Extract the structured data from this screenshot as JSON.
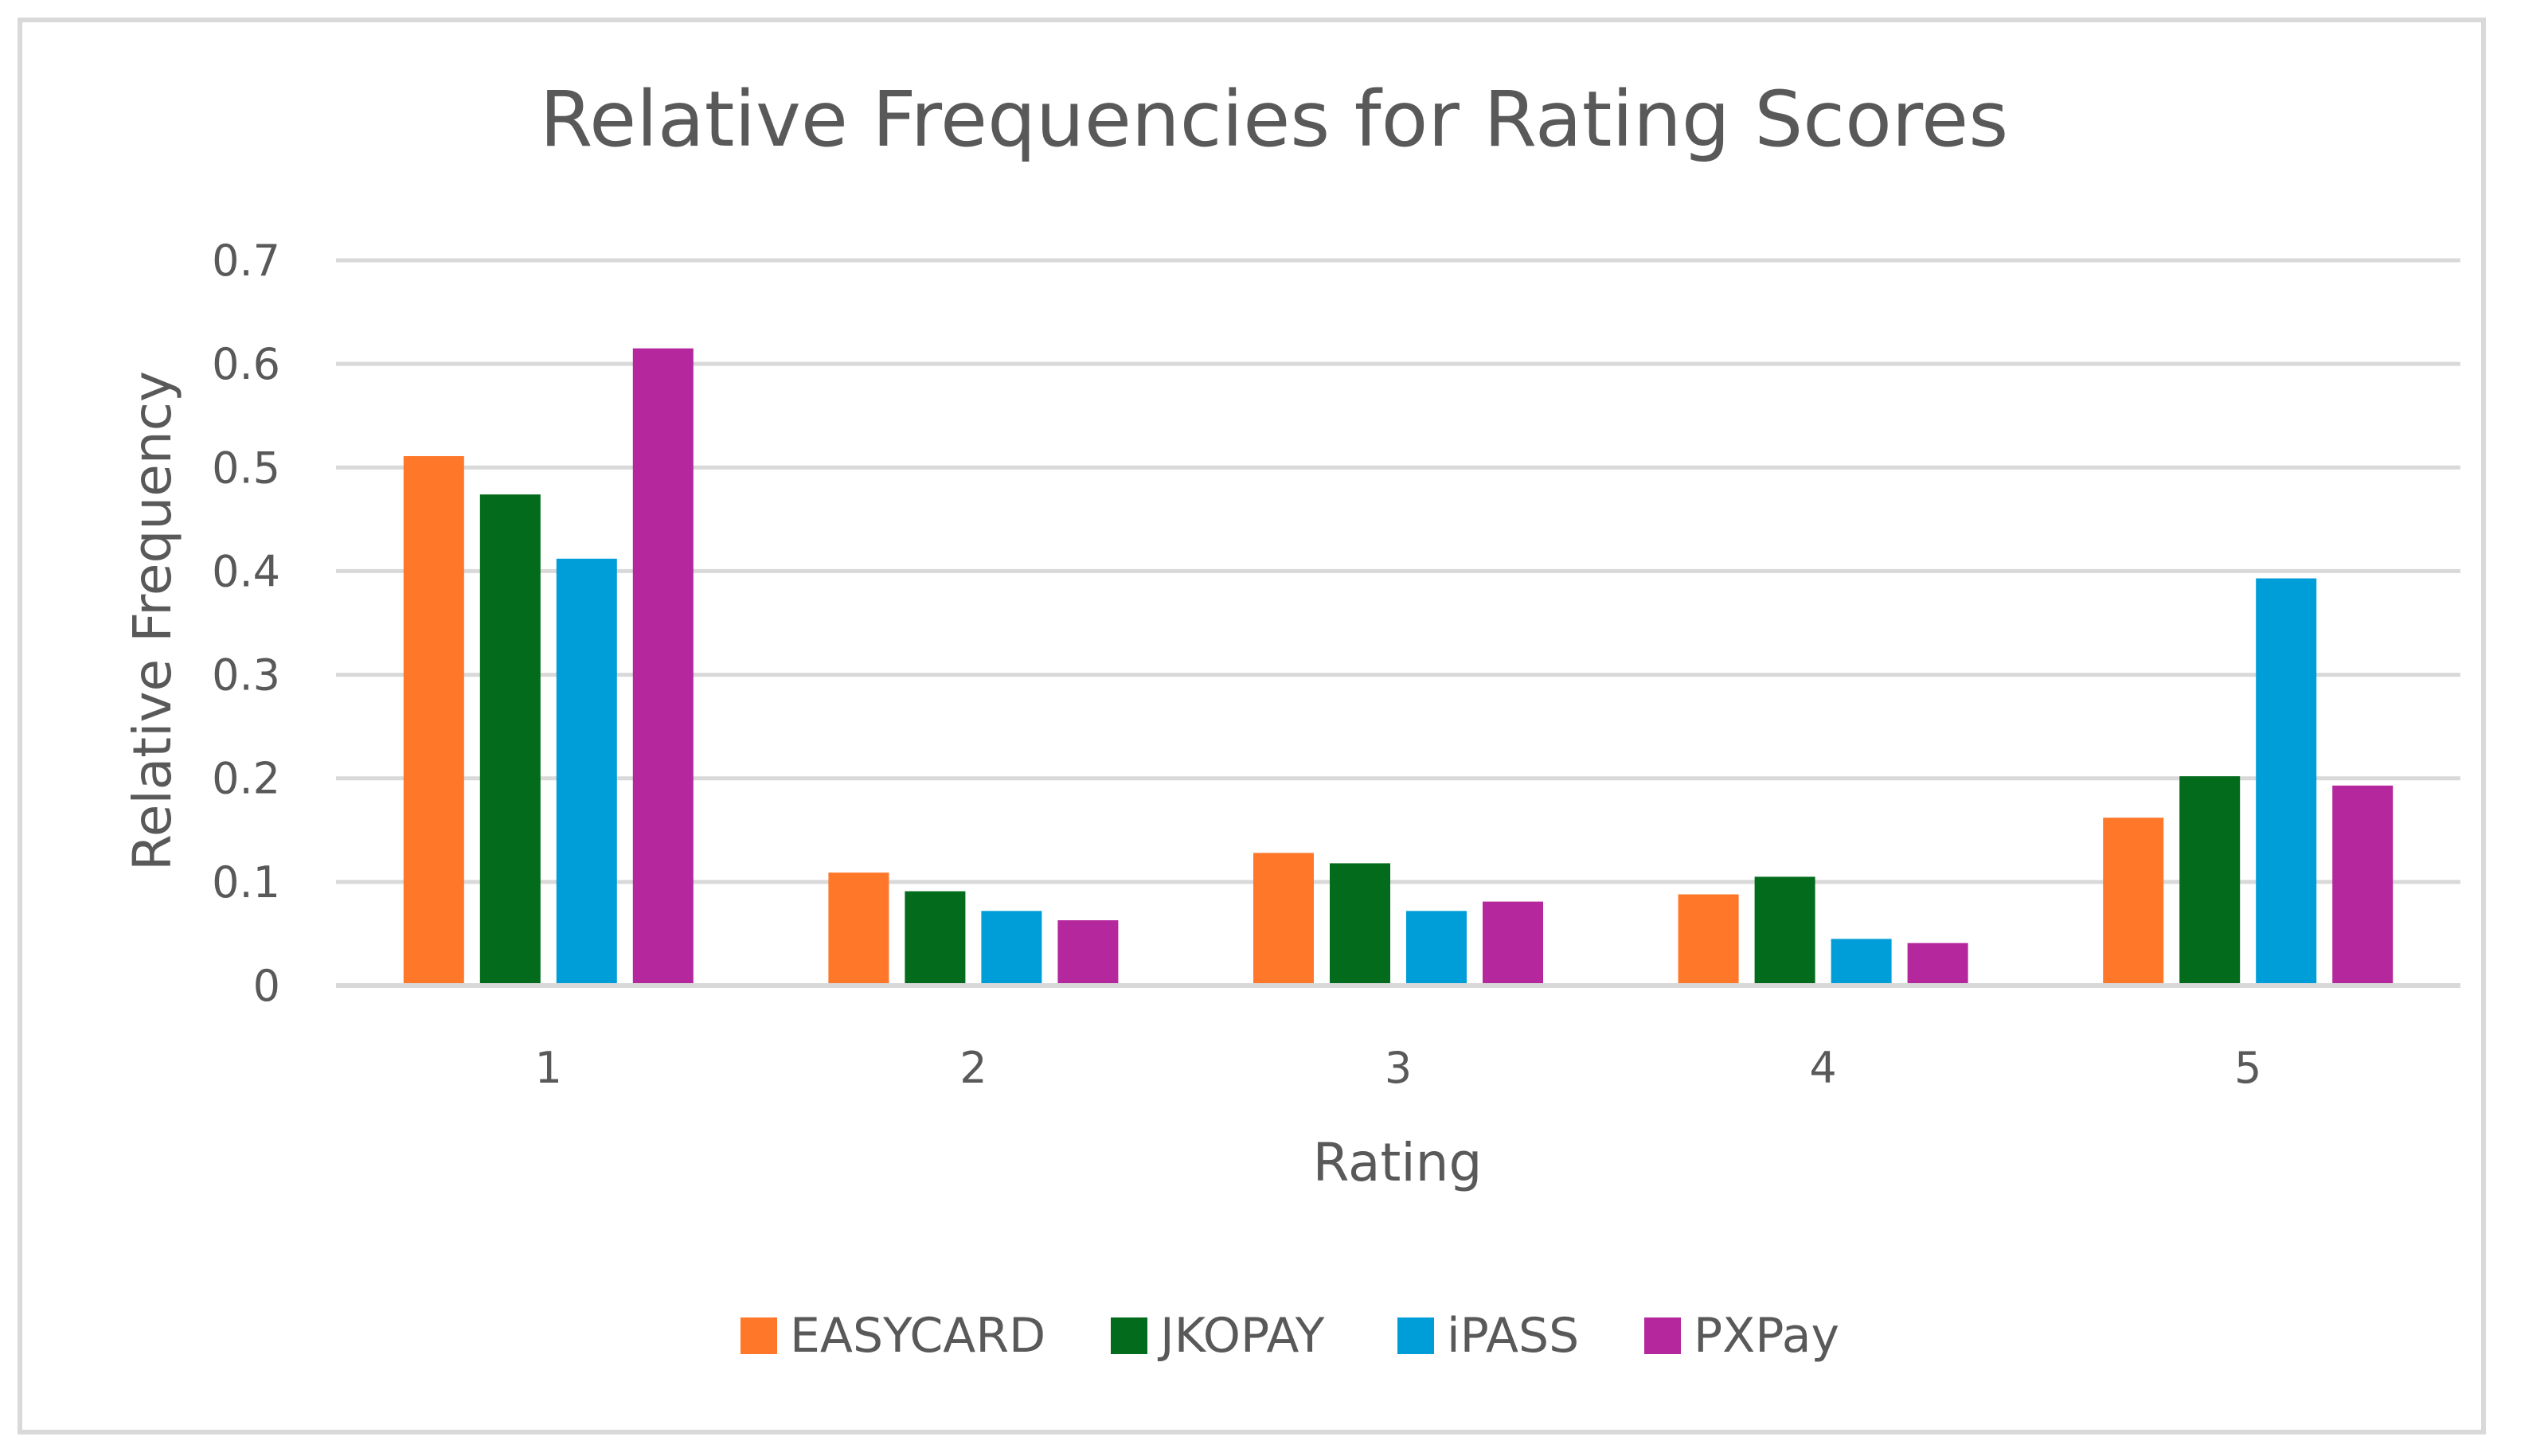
{
  "chart_data": {
    "type": "bar",
    "title": "Relative Frequencies for Rating Scores",
    "xlabel": "Rating",
    "ylabel": "Relative Frequency",
    "categories": [
      "1",
      "2",
      "3",
      "4",
      "5"
    ],
    "ylim": [
      0,
      0.7
    ],
    "yticks": [
      0,
      0.1,
      0.2,
      0.3,
      0.4,
      0.5,
      0.6,
      0.7
    ],
    "ytick_labels": [
      "0",
      "0.1",
      "0.2",
      "0.3",
      "0.4",
      "0.5",
      "0.6",
      "0.7"
    ],
    "grid": true,
    "legend_position": "bottom",
    "series": [
      {
        "name": "EASYCARD",
        "color": "#ff7728",
        "values": [
          0.511,
          0.109,
          0.128,
          0.088,
          0.162
        ]
      },
      {
        "name": "JKOPAY",
        "color": "#036b1c",
        "values": [
          0.474,
          0.091,
          0.118,
          0.105,
          0.202
        ]
      },
      {
        "name": "iPASS",
        "color": "#009ed9",
        "values": [
          0.412,
          0.072,
          0.072,
          0.045,
          0.393
        ]
      },
      {
        "name": "PXPay",
        "color": "#b5279c",
        "values": [
          0.615,
          0.063,
          0.081,
          0.041,
          0.193
        ]
      }
    ]
  }
}
